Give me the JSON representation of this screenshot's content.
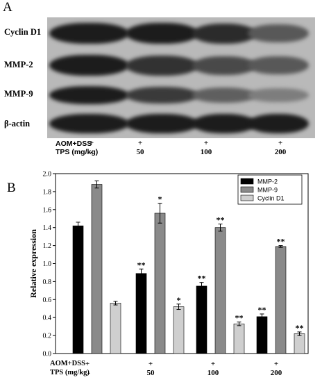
{
  "panel_a": {
    "letter": "A",
    "rows": [
      {
        "label": "Cyclin D1",
        "intensity": [
          0.95,
          0.95,
          0.85,
          0.55
        ]
      },
      {
        "label": "MMP-2",
        "intensity": [
          0.95,
          0.8,
          0.65,
          0.55
        ]
      },
      {
        "label": "MMP-9",
        "intensity": [
          0.95,
          0.75,
          0.5,
          0.3
        ]
      },
      {
        "label": "β-actin",
        "intensity": [
          0.95,
          0.95,
          0.95,
          0.95
        ]
      }
    ],
    "conditions": {
      "aom_label": "AOM+DSS",
      "tps_label": "TPS (mg/kg)",
      "aom_values": [
        "+",
        "+",
        "+",
        "+"
      ],
      "tps_values": [
        "-",
        "50",
        "100",
        "200"
      ]
    }
  },
  "panel_b": {
    "letter": "B",
    "conditions": {
      "aom_label": "AOM+DSS",
      "tps_label": "TPS (mg/kg)",
      "aom_values": [
        "+",
        "+",
        "+",
        "+"
      ],
      "tps_values": [
        "-",
        "50",
        "100",
        "200"
      ]
    }
  },
  "chart_data": {
    "type": "bar",
    "categories": [
      "-",
      "50",
      "100",
      "200"
    ],
    "ylabel": "Relative  expression",
    "xlabel": "",
    "ylim": [
      0,
      2.0
    ],
    "yticks": [
      "0.0",
      "0.2",
      "0.4",
      "0.6",
      "0.8",
      "1.0",
      "1.2",
      "1.4",
      "1.6",
      "1.8",
      "2.0"
    ],
    "legend_position": "top-right",
    "series": [
      {
        "name": "MMP-2",
        "color": "#000000",
        "values": [
          1.42,
          0.89,
          0.75,
          0.41
        ],
        "errors": [
          0.04,
          0.05,
          0.04,
          0.03
        ],
        "sig": [
          "",
          "**",
          "**",
          "**"
        ]
      },
      {
        "name": "MMP-9",
        "color": "#8a8a8a",
        "values": [
          1.88,
          1.56,
          1.4,
          1.19
        ],
        "errors": [
          0.04,
          0.11,
          0.04,
          0.01
        ],
        "sig": [
          "",
          "*",
          "**",
          "**"
        ]
      },
      {
        "name": "Cyclin D1",
        "color": "#cfcfcf",
        "values": [
          0.56,
          0.52,
          0.33,
          0.22
        ],
        "errors": [
          0.02,
          0.03,
          0.02,
          0.02
        ],
        "sig": [
          "",
          "*",
          "**",
          "**"
        ]
      }
    ]
  }
}
